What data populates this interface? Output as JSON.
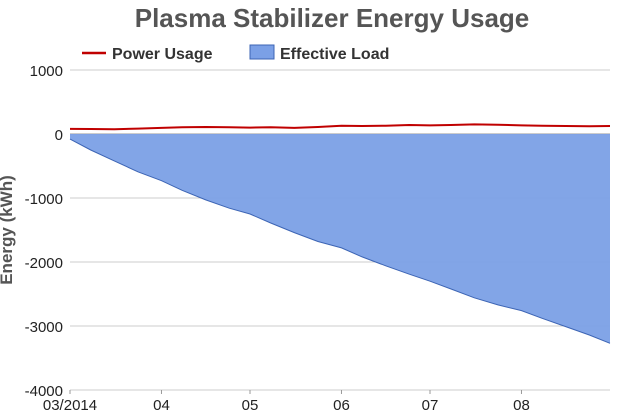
{
  "chart_data": {
    "type": "area",
    "title": "Plasma Stabilizer Energy Usage",
    "xlabel": "",
    "ylabel": "Energy (kWh)",
    "ylim": [
      -4000,
      1000
    ],
    "yticks": [
      1000,
      0,
      -1000,
      -2000,
      -3000,
      -4000
    ],
    "xticks": [
      "03/2014",
      "04",
      "05",
      "06",
      "07",
      "08"
    ],
    "grid": true,
    "legend": "top-left",
    "x": [
      "2014-03-01",
      "2014-03-08",
      "2014-03-16",
      "2014-03-24",
      "2014-04-01",
      "2014-04-08",
      "2014-04-16",
      "2014-04-24",
      "2014-05-01",
      "2014-05-08",
      "2014-05-16",
      "2014-05-24",
      "2014-06-01",
      "2014-06-08",
      "2014-06-16",
      "2014-06-24",
      "2014-07-01",
      "2014-07-08",
      "2014-07-16",
      "2014-07-24",
      "2014-08-01",
      "2014-08-08",
      "2014-08-16",
      "2014-08-24",
      "2014-08-31"
    ],
    "series": [
      {
        "name": "Power Usage",
        "type": "line",
        "color": "#c00000",
        "values": [
          80,
          78,
          75,
          85,
          95,
          105,
          110,
          105,
          100,
          105,
          95,
          110,
          130,
          125,
          130,
          140,
          135,
          140,
          150,
          145,
          135,
          130,
          125,
          120,
          125
        ]
      },
      {
        "name": "Effective Load",
        "type": "area",
        "color": "#7ba0e6",
        "stroke": "#3c64b4",
        "values": [
          -80,
          -250,
          -420,
          -590,
          -730,
          -880,
          -1030,
          -1160,
          -1250,
          -1390,
          -1540,
          -1680,
          -1780,
          -1920,
          -2060,
          -2190,
          -2300,
          -2420,
          -2560,
          -2670,
          -2760,
          -2880,
          -3010,
          -3140,
          -3270
        ]
      }
    ]
  }
}
